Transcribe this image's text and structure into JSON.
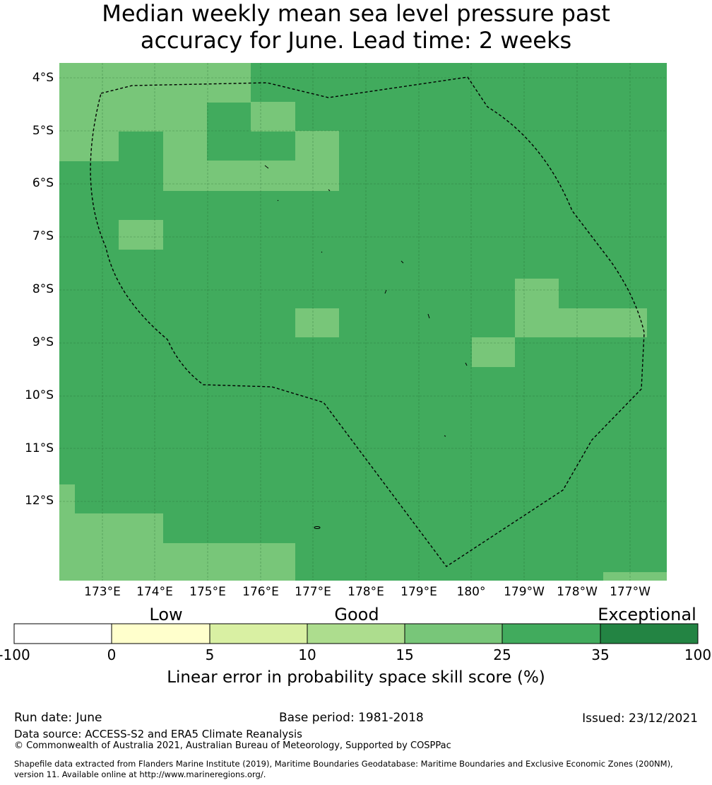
{
  "title_line1": "Median weekly mean sea level pressure past",
  "title_line2": "accuracy for June. Lead time: 2 weeks",
  "lat_labels": [
    "4°S",
    "5°S",
    "6°S",
    "7°S",
    "8°S",
    "9°S",
    "10°S",
    "11°S",
    "12°S"
  ],
  "lon_labels": [
    "173°E",
    "174°E",
    "175°E",
    "176°E",
    "177°E",
    "178°E",
    "179°E",
    "180°",
    "179°W",
    "178°W",
    "177°W"
  ],
  "legend": {
    "categories": [
      "Low",
      "Good",
      "Exceptional"
    ],
    "ticks": [
      "-100",
      "0",
      "5",
      "10",
      "15",
      "25",
      "35",
      "100"
    ],
    "colors": [
      "#ffffff",
      "#ffffcc",
      "#d9f0a3",
      "#addd8e",
      "#78c679",
      "#41ab5d",
      "#238443"
    ],
    "title": "Linear error in probability space skill score (%)"
  },
  "map": {
    "background_category_color": "#41ab5d",
    "highlight_category_color": "#78c679"
  },
  "footer": {
    "run_date": "Run date: June",
    "base_period": "Base period: 1981-2018",
    "issued": "Issued: 23/12/2021",
    "data_source": "Data source: ACCESS-S2 and ERA5 Climate Reanalysis",
    "copyright": "© Commonwealth of Australia 2021, Australian Bureau of Meteorology, Supported by COSPPac",
    "shapefile_line1": "Shapefile data extracted from Flanders Marine Institute (2019), Maritime Boundaries Geodatabase: Maritime Boundaries and Exclusive Economic Zones (200NM),",
    "shapefile_line2": "version 11. Available online at http://www.marineregions.org/."
  }
}
